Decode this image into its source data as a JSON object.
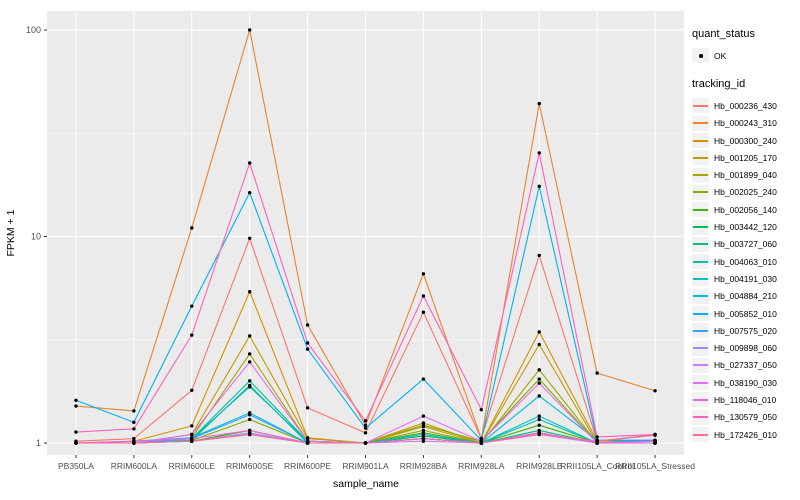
{
  "colors": {
    "panel_bg": "#EBEBEB",
    "grid_major": "#FFFFFF",
    "grid_minor": "#FFFFFF",
    "tick_mark": "#333333",
    "tick_text": "#4D4D4D",
    "axis_title_text": "#000000",
    "point": "#000000",
    "legend_key_bg": "#F2F2F2"
  },
  "legend_quant": {
    "title": "quant_status",
    "items": [
      {
        "label": "OK",
        "marker": "black-point"
      }
    ]
  },
  "legend_tracking": {
    "title": "tracking_id"
  },
  "chart_data": {
    "type": "line",
    "title": "",
    "xlabel": "sample_name",
    "ylabel": "FPKM + 1",
    "yscale": "log10",
    "yticks": [
      1,
      10,
      100
    ],
    "ytick_labels": [
      "1",
      "10",
      "100"
    ],
    "ylim": [
      0.88,
      123
    ],
    "grid": true,
    "legend_position": "right",
    "point_marker": "black filled circle = quant_status OK",
    "categories": [
      "PB350LA",
      "RRIM600LA",
      "RRIM600LE",
      "RRIM600SE",
      "RRIM600PE",
      "RRIM901LA",
      "RRIM928BA",
      "RRIM928LA",
      "RRIM928LB",
      "RRII105LA_Control",
      "RRII105LA_Stressed"
    ],
    "series": [
      {
        "name": "Hb_000236_430",
        "color": "#F8766D",
        "values": [
          1.02,
          1.05,
          1.8,
          9.8,
          1.48,
          1.12,
          4.3,
          1.05,
          8.1,
          1.02,
          1.1
        ]
      },
      {
        "name": "Hb_000243_310",
        "color": "#EA8331",
        "values": [
          1.51,
          1.43,
          11.0,
          100,
          3.73,
          1.22,
          6.6,
          1.05,
          44.0,
          2.18,
          1.79
        ]
      },
      {
        "name": "Hb_000300_240",
        "color": "#D89000",
        "values": [
          1.0,
          1.02,
          1.21,
          5.4,
          1.06,
          1.0,
          1.25,
          1.0,
          3.45,
          1.02,
          1.02
        ]
      },
      {
        "name": "Hb_001205_170",
        "color": "#C09B00",
        "values": [
          1.0,
          1.0,
          1.1,
          3.3,
          1.05,
          1.0,
          1.2,
          1.0,
          3.0,
          1.0,
          1.02
        ]
      },
      {
        "name": "Hb_001899_040",
        "color": "#A3A500",
        "values": [
          1.0,
          1.0,
          1.06,
          2.7,
          1.02,
          1.0,
          1.15,
          1.0,
          2.26,
          1.0,
          1.0
        ]
      },
      {
        "name": "Hb_002025_240",
        "color": "#7CAE00",
        "values": [
          1.0,
          1.0,
          1.03,
          1.3,
          1.0,
          1.0,
          1.22,
          1.02,
          2.04,
          1.0,
          1.0
        ]
      },
      {
        "name": "Hb_002056_140",
        "color": "#39B600",
        "values": [
          1.0,
          1.0,
          1.02,
          1.15,
          1.0,
          1.0,
          1.12,
          1.0,
          1.22,
          1.0,
          1.0
        ]
      },
      {
        "name": "Hb_003442_120",
        "color": "#00BB4E",
        "values": [
          1.0,
          1.0,
          1.02,
          1.1,
          1.0,
          1.0,
          1.08,
          1.0,
          1.12,
          1.0,
          1.0
        ]
      },
      {
        "name": "Hb_003727_060",
        "color": "#00BF7D",
        "values": [
          1.0,
          1.0,
          1.03,
          1.9,
          1.0,
          1.0,
          1.05,
          1.0,
          1.15,
          1.0,
          1.0
        ]
      },
      {
        "name": "Hb_004063_010",
        "color": "#00C1A3",
        "values": [
          1.0,
          1.0,
          1.05,
          2.0,
          1.02,
          1.0,
          1.05,
          1.0,
          1.3,
          1.0,
          1.0
        ]
      },
      {
        "name": "Hb_004191_030",
        "color": "#00BFC4",
        "values": [
          1.0,
          1.0,
          1.05,
          1.87,
          1.02,
          1.0,
          1.05,
          1.0,
          1.35,
          1.0,
          1.03
        ]
      },
      {
        "name": "Hb_004884_210",
        "color": "#00BAE0",
        "values": [
          1.0,
          1.02,
          1.06,
          1.4,
          1.0,
          1.0,
          1.1,
          1.0,
          1.69,
          1.03,
          1.03
        ]
      },
      {
        "name": "Hb_005852_010",
        "color": "#00B0F6",
        "values": [
          1.61,
          1.26,
          4.6,
          16.3,
          2.85,
          1.18,
          2.04,
          1.03,
          17.5,
          1.03,
          1.03
        ]
      },
      {
        "name": "Hb_007575_020",
        "color": "#35A2FF",
        "values": [
          1.0,
          1.0,
          1.05,
          1.37,
          1.0,
          1.0,
          1.05,
          1.0,
          1.12,
          1.0,
          1.0
        ]
      },
      {
        "name": "Hb_009898_060",
        "color": "#9590FF",
        "values": [
          1.0,
          1.0,
          1.02,
          1.12,
          1.0,
          1.0,
          1.05,
          1.0,
          1.12,
          1.0,
          1.0
        ]
      },
      {
        "name": "Hb_027337_050",
        "color": "#C77CFF",
        "values": [
          1.0,
          1.0,
          1.02,
          1.1,
          1.0,
          1.0,
          1.02,
          1.0,
          1.1,
          1.0,
          1.0
        ]
      },
      {
        "name": "Hb_038190_030",
        "color": "#E76BF3",
        "values": [
          1.0,
          1.0,
          1.1,
          2.47,
          1.02,
          1.0,
          1.35,
          1.02,
          1.95,
          1.0,
          1.0
        ]
      },
      {
        "name": "Hb_118046_010",
        "color": "#FA62DB",
        "values": [
          1.0,
          1.02,
          1.05,
          1.15,
          1.0,
          1.0,
          1.05,
          1.0,
          1.12,
          1.0,
          1.02
        ]
      },
      {
        "name": "Hb_130579_050",
        "color": "#FF62BC",
        "values": [
          1.13,
          1.17,
          3.33,
          22.7,
          3.05,
          1.28,
          5.15,
          1.45,
          25.4,
          1.07,
          1.1
        ]
      },
      {
        "name": "Hb_172426_010",
        "color": "#FF6A98",
        "values": [
          1.0,
          1.0,
          1.02,
          1.1,
          1.0,
          1.0,
          1.05,
          1.0,
          1.1,
          1.02,
          1.09
        ]
      }
    ]
  }
}
